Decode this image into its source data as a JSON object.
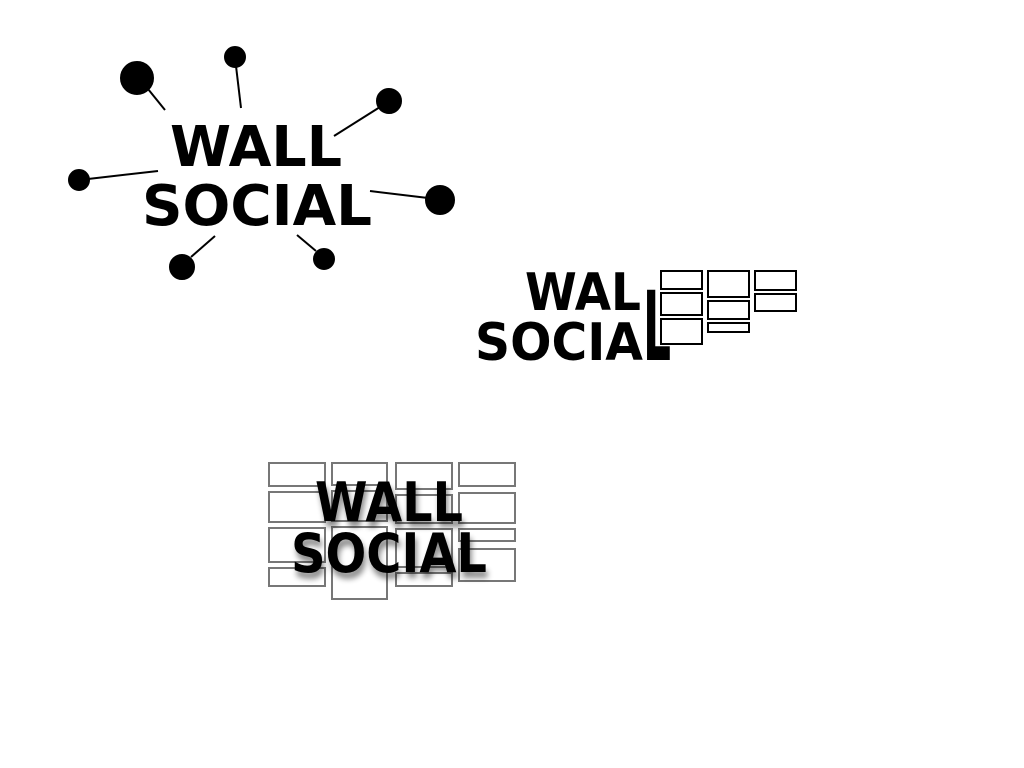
{
  "canvas": {
    "background": "#ffffff",
    "ink_color": "#000000",
    "grid_line_color": "#777777"
  },
  "logos": [
    {
      "variant": "network-nodes",
      "line1": "WALL",
      "line2": "SOCIAL",
      "icon": "network-node-burst-icon"
    },
    {
      "variant": "brick-wall-right",
      "line1": "WAL",
      "line2": "SOCIA",
      "shared_letter": "L",
      "icon": "brick-wall-icon"
    },
    {
      "variant": "brick-wall-background",
      "line1": "WALL",
      "line2": "SOCIAL",
      "icon": "brick-grid-icon"
    }
  ]
}
